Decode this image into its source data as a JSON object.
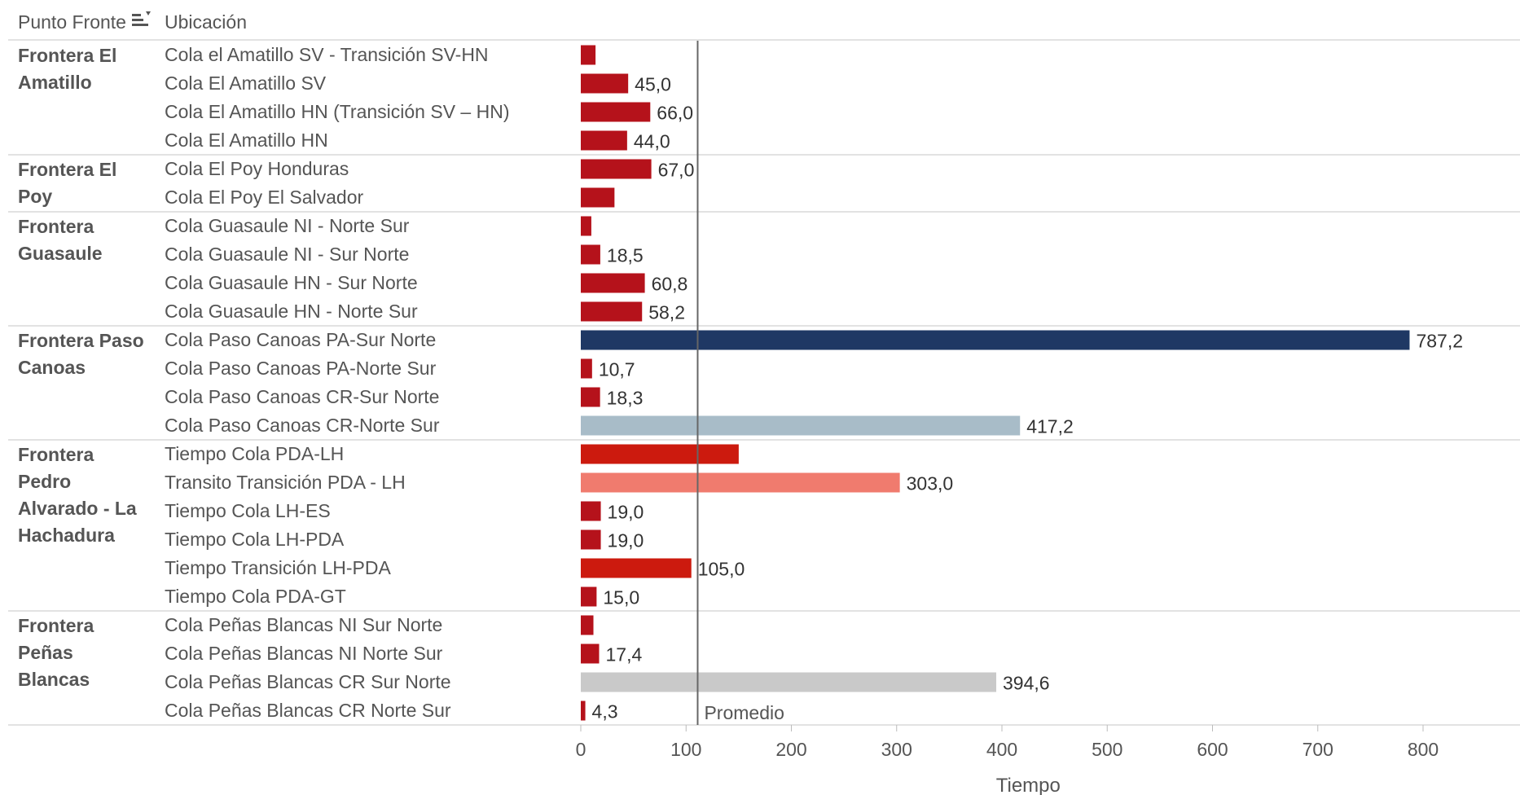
{
  "header": {
    "group_col_label": "Punto Fronte",
    "sort_icon": "sort-descending-icon",
    "row_col_label": "Ubicación"
  },
  "chart_data": {
    "type": "bar",
    "orientation": "horizontal",
    "xlabel": "Tiempo",
    "ylabel": "",
    "xlim": [
      0,
      850
    ],
    "xticks": [
      0,
      100,
      200,
      300,
      400,
      500,
      600,
      700,
      800
    ],
    "reference_line": {
      "label": "Promedio",
      "value": 111
    },
    "groups": [
      {
        "name": "Frontera El\nAmatillo",
        "rows": [
          {
            "label": "Cola el Amatillo SV - Transición SV-HN",
            "value": 14,
            "value_label": "",
            "color": "#b5121b"
          },
          {
            "label": "Cola El Amatillo SV",
            "value": 45.0,
            "value_label": "45,0",
            "color": "#b5121b"
          },
          {
            "label": "Cola El Amatillo HN (Transición SV – HN)",
            "value": 66.0,
            "value_label": "66,0",
            "color": "#b5121b"
          },
          {
            "label": "Cola El Amatillo HN",
            "value": 44.0,
            "value_label": "44,0",
            "color": "#b5121b"
          }
        ]
      },
      {
        "name": "Frontera El\nPoy",
        "rows": [
          {
            "label": "Cola El Poy Honduras",
            "value": 67.0,
            "value_label": "67,0",
            "color": "#b5121b"
          },
          {
            "label": "Cola El Poy El Salvador",
            "value": 32,
            "value_label": "",
            "color": "#b5121b"
          }
        ]
      },
      {
        "name": "Frontera\nGuasaule",
        "rows": [
          {
            "label": "Cola Guasaule NI - Norte Sur",
            "value": 10,
            "value_label": "",
            "color": "#b5121b"
          },
          {
            "label": "Cola Guasaule NI -  Sur Norte",
            "value": 18.5,
            "value_label": "18,5",
            "color": "#b5121b"
          },
          {
            "label": "Cola Guasaule HN - Sur Norte",
            "value": 60.8,
            "value_label": "60,8",
            "color": "#b5121b"
          },
          {
            "label": "Cola Guasaule HN - Norte Sur",
            "value": 58.2,
            "value_label": "58,2",
            "color": "#b5121b"
          }
        ]
      },
      {
        "name": "Frontera Paso\nCanoas",
        "rows": [
          {
            "label": "Cola Paso Canoas PA-Sur Norte",
            "value": 787.2,
            "value_label": "787,2",
            "color": "#1f3864"
          },
          {
            "label": "Cola Paso Canoas PA-Norte Sur",
            "value": 10.7,
            "value_label": "10,7",
            "color": "#b5121b"
          },
          {
            "label": "Cola Paso Canoas CR-Sur Norte",
            "value": 18.3,
            "value_label": "18,3",
            "color": "#b5121b"
          },
          {
            "label": "Cola Paso Canoas CR-Norte Sur",
            "value": 417.2,
            "value_label": "417,2",
            "color": "#a8bcc8"
          }
        ]
      },
      {
        "name": "Frontera\nPedro\nAlvarado - La\nHachadura",
        "rows": [
          {
            "label": "Tiempo Cola PDA-LH",
            "value": 150,
            "value_label": "",
            "color": "#cc1a0e"
          },
          {
            "label": "Transito Transición PDA - LH",
            "value": 303.0,
            "value_label": "303,0",
            "color": "#f07b6e"
          },
          {
            "label": "Tiempo Cola LH-ES",
            "value": 19.0,
            "value_label": "19,0",
            "color": "#b5121b"
          },
          {
            "label": "Tiempo Cola LH-PDA",
            "value": 19.0,
            "value_label": "19,0",
            "color": "#b5121b"
          },
          {
            "label": "Tiempo Transición LH-PDA",
            "value": 105.0,
            "value_label": "105,0",
            "color": "#cc1a0e"
          },
          {
            "label": "Tiempo Cola PDA-GT",
            "value": 15.0,
            "value_label": "15,0",
            "color": "#b5121b"
          }
        ]
      },
      {
        "name": "Frontera\nPeñas\nBlancas",
        "rows": [
          {
            "label": "Cola Peñas Blancas NI Sur Norte",
            "value": 12,
            "value_label": "",
            "color": "#b5121b"
          },
          {
            "label": "Cola Peñas Blancas NI Norte Sur",
            "value": 17.4,
            "value_label": "17,4",
            "color": "#b5121b"
          },
          {
            "label": "Cola Peñas Blancas CR Sur Norte",
            "value": 394.6,
            "value_label": "394,6",
            "color": "#c9c9c9"
          },
          {
            "label": "Cola Peñas Blancas CR Norte Sur",
            "value": 4.3,
            "value_label": "4,3",
            "color": "#b5121b"
          }
        ]
      }
    ]
  }
}
